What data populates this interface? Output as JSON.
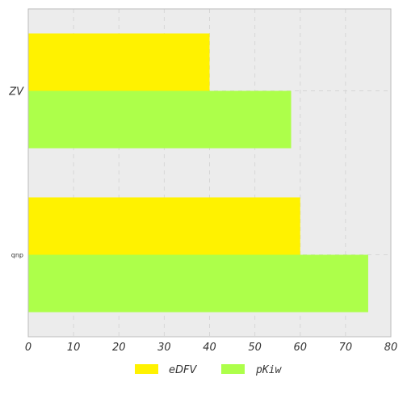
{
  "chart_data": {
    "type": "bar",
    "orientation": "horizontal",
    "title": "",
    "xlabel": "",
    "ylabel": "",
    "categories": [
      "ZV",
      "qnp"
    ],
    "series": [
      {
        "name": "eDFV",
        "values": [
          40,
          60
        ],
        "color": "#fff200"
      },
      {
        "name": "pKiw",
        "values": [
          58,
          75
        ],
        "color": "#adff4a"
      }
    ],
    "xlim": [
      0,
      80
    ],
    "xticks": [
      0,
      10,
      20,
      30,
      40,
      50,
      60,
      70,
      80
    ],
    "grid": true,
    "legend_position": "bottom-center",
    "background_color": "#ececec"
  }
}
